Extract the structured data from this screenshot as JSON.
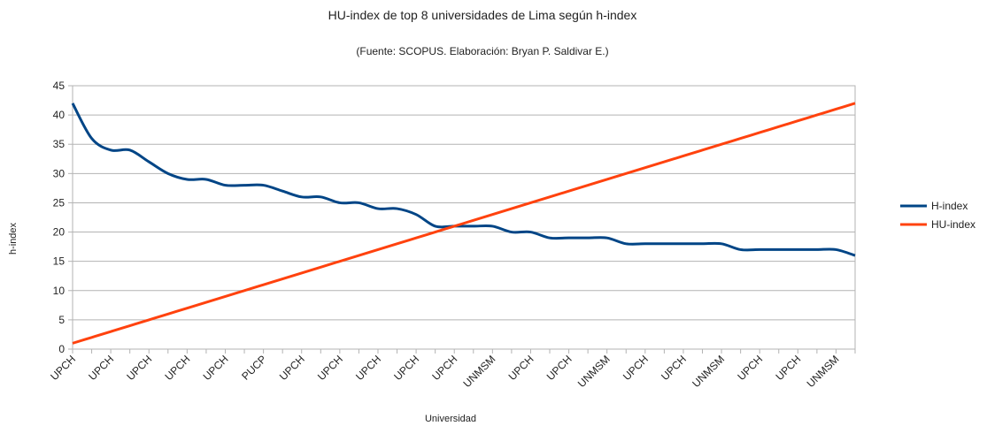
{
  "chart_data": {
    "type": "line",
    "title": "HU-index de top 8 universidades de Lima según h-index",
    "subtitle": "(Fuente: SCOPUS. Elaboración: Bryan P. Saldivar E.)",
    "x_label": "Universidad",
    "y_label": "h-index",
    "categories": [
      "UPCH",
      null,
      "UPCH",
      null,
      "UPCH",
      null,
      "UPCH",
      null,
      "UPCH",
      null,
      "PUCP",
      null,
      "UPCH",
      null,
      "UPCH",
      null,
      "UPCH",
      null,
      "UPCH",
      null,
      "UPCH",
      null,
      "UNMSM",
      null,
      "UPCH",
      null,
      "UPCH",
      null,
      "UNMSM",
      null,
      "UPCH",
      null,
      "UPCH",
      null,
      "UNMSM",
      null,
      "UPCH",
      null,
      "UPCH",
      null,
      "UNMSM",
      null
    ],
    "series": [
      {
        "name": "H-index",
        "color": "#004586",
        "values": [
          42,
          36,
          34,
          34,
          32,
          30,
          29,
          29,
          28,
          28,
          28,
          27,
          26,
          26,
          25,
          25,
          24,
          24,
          23,
          21,
          21,
          21,
          21,
          20,
          20,
          19,
          19,
          19,
          19,
          18,
          18,
          18,
          18,
          18,
          18,
          17,
          17,
          17,
          17,
          17,
          17,
          16
        ]
      },
      {
        "name": "HU-index",
        "color": "#ff420e",
        "values": [
          1,
          2,
          3,
          4,
          5,
          6,
          7,
          8,
          9,
          10,
          11,
          12,
          13,
          14,
          15,
          16,
          17,
          18,
          19,
          20,
          21,
          22,
          23,
          24,
          25,
          26,
          27,
          28,
          29,
          30,
          31,
          32,
          33,
          34,
          35,
          36,
          37,
          38,
          39,
          40,
          41,
          42
        ]
      }
    ],
    "ylim": [
      0,
      45
    ],
    "yticks": [
      0,
      5,
      10,
      15,
      20,
      25,
      30,
      35,
      40,
      45
    ],
    "grid": true,
    "legend": "right"
  }
}
